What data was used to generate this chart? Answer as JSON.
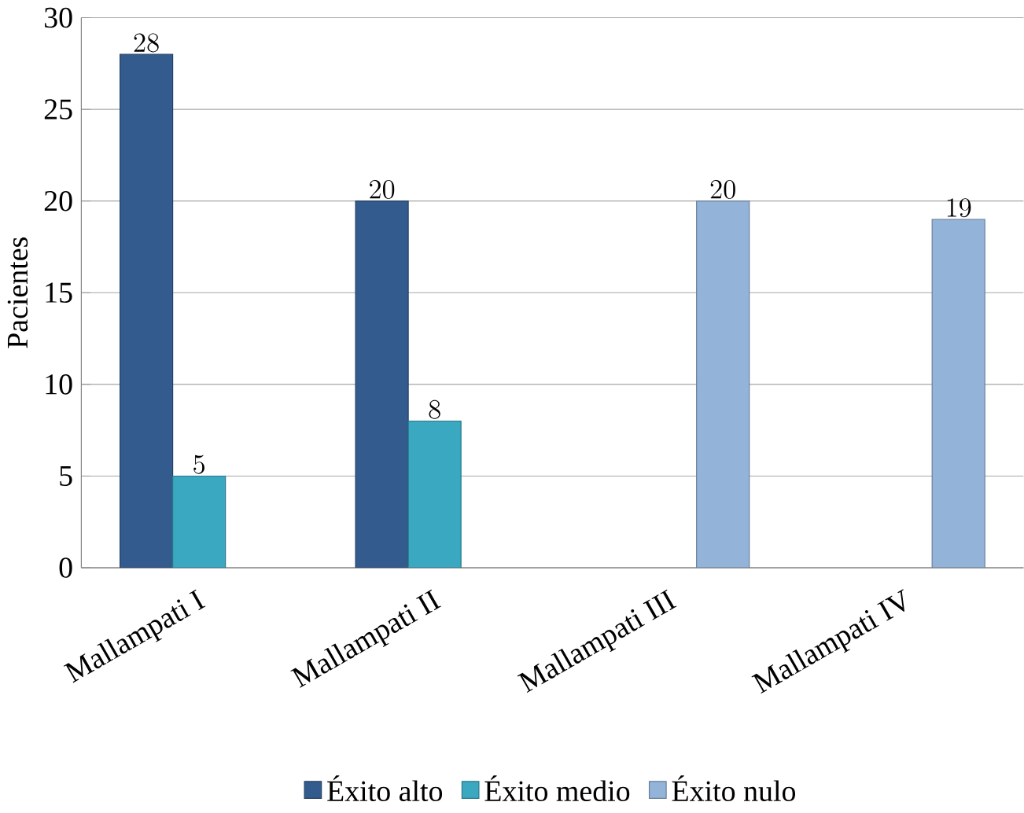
{
  "chart_data": {
    "type": "bar",
    "ylabel": "Pacientes",
    "categories": [
      "Mallampati I",
      "Mallampati II",
      "Mallampati III",
      "Mallampati IV"
    ],
    "series": [
      {
        "name": "Éxito alto",
        "color": "#335b8e",
        "values": [
          28,
          20,
          null,
          null
        ]
      },
      {
        "name": "Éxito medio",
        "color": "#3aa8c1",
        "values": [
          5,
          8,
          null,
          null
        ]
      },
      {
        "name": "Éxito nulo",
        "color": "#93b3d9",
        "values": [
          null,
          null,
          20,
          19
        ]
      }
    ],
    "ylim": [
      0,
      30
    ],
    "yticks": [
      0,
      5,
      10,
      15,
      20,
      25,
      30
    ],
    "grid": "y",
    "legend": "bottom",
    "data_labels": true
  }
}
